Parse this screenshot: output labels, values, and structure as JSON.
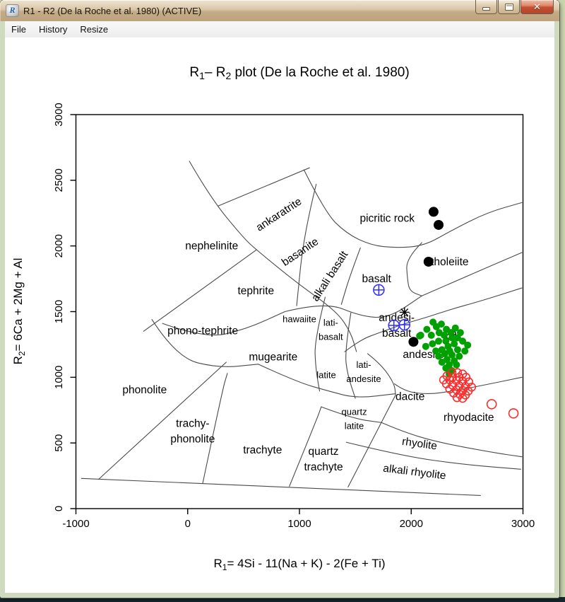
{
  "window": {
    "title": "R1 - R2 (De la Roche et al. 1980) (ACTIVE)",
    "icon_letter": "R",
    "controls": {
      "minimize": "minimize",
      "maximize": "maximize",
      "close": "close"
    }
  },
  "menu": {
    "items": [
      "File",
      "History",
      "Resize"
    ]
  },
  "chart_data": {
    "type": "scatter",
    "title_segments": [
      {
        "t": "R"
      },
      {
        "t": "1",
        "sub": true
      },
      {
        "t": "– R"
      },
      {
        "t": "2",
        "sub": true
      },
      {
        "t": " plot (De la Roche et al. 1980)"
      }
    ],
    "xlabel_segments": [
      {
        "t": "R"
      },
      {
        "t": "1",
        "sub": true
      },
      {
        "t": "= 4Si - 11(Na + K) - 2(Fe + Ti)"
      }
    ],
    "ylabel_segments": [
      {
        "t": "R"
      },
      {
        "t": "2",
        "sub": true
      },
      {
        "t": "= 6Ca + 2Mg + Al"
      }
    ],
    "xlim": [
      -1000,
      3000
    ],
    "ylim": [
      0,
      3000
    ],
    "x_ticks": [
      -1000,
      0,
      1000,
      2000,
      3000
    ],
    "y_ticks": [
      0,
      500,
      1000,
      1500,
      2000,
      2500,
      3000
    ],
    "grid": false,
    "colors": {
      "green_series": "#00A000",
      "red_series": "#FF2A2A",
      "blue_series": "#2E2EFF",
      "black_series": "#000000",
      "boundary": "#4a4a4a"
    },
    "fields": [
      {
        "label": "nephelinite",
        "at": [
          215,
          2000
        ],
        "size": "lg",
        "angle": 0
      },
      {
        "label": "ankaratrite",
        "at": [
          815,
          2240
        ],
        "size": "lg",
        "angle": -33
      },
      {
        "label": "basanite",
        "at": [
          1005,
          1955
        ],
        "size": "lg",
        "angle": -34
      },
      {
        "label": "alkali basalt",
        "at": [
          1270,
          1770
        ],
        "size": "lg",
        "angle": -57
      },
      {
        "label": "picritic rock",
        "at": [
          1785,
          2210
        ],
        "size": "lg",
        "angle": 0
      },
      {
        "label": "basalt",
        "at": [
          1690,
          1750
        ],
        "size": "lg",
        "angle": 0
      },
      {
        "label": "tholeiite",
        "at": [
          2345,
          1880
        ],
        "size": "lg",
        "angle": 0
      },
      {
        "label": "tephrite",
        "at": [
          610,
          1660
        ],
        "size": "lg",
        "angle": 0
      },
      {
        "label": "phono-tephrite",
        "at": [
          135,
          1355
        ],
        "size": "lg",
        "angle": 0
      },
      {
        "label": "hawaiite",
        "at": [
          1000,
          1445
        ],
        "size": "sm",
        "angle": 0
      },
      {
        "label": "lati-\nbasalt",
        "at": [
          1280,
          1420
        ],
        "size": "sm",
        "angle": 0
      },
      {
        "label": "mugearite",
        "at": [
          765,
          1155
        ],
        "size": "lg",
        "angle": 0
      },
      {
        "label": "phonolite",
        "at": [
          -385,
          905
        ],
        "size": "lg",
        "angle": 0
      },
      {
        "label": "latite",
        "at": [
          1240,
          1020
        ],
        "size": "sm",
        "angle": 0
      },
      {
        "label": "lati-\nandesite",
        "at": [
          1575,
          1100
        ],
        "size": "sm",
        "angle": 0
      },
      {
        "label": "andesi-\nbasalt",
        "at": [
          1870,
          1455
        ],
        "size": "lg",
        "angle": 0
      },
      {
        "label": "andesite",
        "at": [
          2110,
          1175
        ],
        "size": "lg",
        "angle": 0
      },
      {
        "label": "dacite",
        "at": [
          1990,
          855
        ],
        "size": "lg",
        "angle": 0
      },
      {
        "label": "quartz\nlatite",
        "at": [
          1490,
          740
        ],
        "size": "sm",
        "angle": 0
      },
      {
        "label": "rhyodacite",
        "at": [
          2515,
          695
        ],
        "size": "lg",
        "angle": 0
      },
      {
        "label": "rhyolite",
        "at": [
          2075,
          495
        ],
        "size": "lg",
        "angle": 8
      },
      {
        "label": "alkali rhyolite",
        "at": [
          2030,
          280
        ],
        "size": "lg",
        "angle": 7
      },
      {
        "label": "trachy-\nphonolite",
        "at": [
          45,
          650
        ],
        "size": "lg",
        "angle": 0
      },
      {
        "label": "trachyte",
        "at": [
          670,
          447
        ],
        "size": "lg",
        "angle": 0
      },
      {
        "label": "quartz\ntrachyte",
        "at": [
          1215,
          435
        ],
        "size": "lg",
        "angle": 0
      }
    ],
    "boundaries": [
      [
        [
          -950,
          230
        ],
        [
          2620,
          100
        ]
      ],
      [
        [
          -320,
          1440
        ],
        [
          -100,
          1150
        ],
        [
          280,
          1070
        ],
        [
          630,
          1100
        ]
      ],
      [
        [
          -795,
          225
        ],
        [
          345,
          1115
        ]
      ],
      [
        [
          135,
          195
        ],
        [
          310,
          900
        ],
        [
          355,
          1030
        ]
      ],
      [
        [
          910,
          170
        ],
        [
          1155,
          680
        ],
        [
          1195,
          775
        ]
      ],
      [
        [
          1435,
          165
        ],
        [
          1860,
          865
        ]
      ],
      [
        [
          -395,
          1350
        ],
        [
          615,
          1970
        ]
      ],
      [
        [
          15,
          2645
        ],
        [
          205,
          2365
        ],
        [
          500,
          2060
        ],
        [
          615,
          1970
        ],
        [
          975,
          1720
        ],
        [
          1335,
          1500
        ],
        [
          1460,
          1340
        ],
        [
          1510,
          1195
        ]
      ],
      [
        [
          275,
          2305
        ],
        [
          1090,
          2595
        ]
      ],
      [
        [
          1040,
          2580
        ],
        [
          1230,
          2255
        ],
        [
          1420,
          2095
        ],
        [
          1640,
          2005
        ],
        [
          1860,
          1985
        ],
        [
          2115,
          2000
        ],
        [
          2365,
          2120
        ],
        [
          2680,
          2255
        ],
        [
          2990,
          2330
        ]
      ],
      [
        [
          2095,
          2025
        ],
        [
          1955,
          1905
        ],
        [
          1965,
          1755
        ],
        [
          1985,
          1655
        ],
        [
          2095,
          1620
        ]
      ],
      [
        [
          2095,
          1620
        ],
        [
          2430,
          1745
        ],
        [
          2990,
          1950
        ]
      ],
      [
        [
          1150,
          2470
        ],
        [
          1040,
          2095
        ],
        [
          975,
          1545
        ]
      ],
      [
        [
          1545,
          1985
        ],
        [
          1450,
          1770
        ],
        [
          1375,
          1555
        ]
      ],
      [
        [
          870,
          1500
        ],
        [
          1230,
          1575
        ],
        [
          1545,
          1465
        ],
        [
          1800,
          1450
        ],
        [
          2095,
          1620
        ]
      ],
      [
        [
          1460,
          1490
        ],
        [
          1405,
          1195
        ],
        [
          1430,
          1020
        ],
        [
          1500,
          840
        ]
      ],
      [
        [
          1230,
          1610
        ],
        [
          1135,
          1285
        ],
        [
          1145,
          1070
        ],
        [
          1180,
          895
        ]
      ],
      [
        [
          -225,
          1410
        ],
        [
          155,
          1295
        ],
        [
          520,
          1365
        ],
        [
          870,
          1500
        ]
      ],
      [
        [
          630,
          1100
        ],
        [
          975,
          965
        ],
        [
          1260,
          895
        ],
        [
          1510,
          840
        ],
        [
          1860,
          875
        ]
      ],
      [
        [
          1610,
          1180
        ],
        [
          1735,
          1095
        ],
        [
          1850,
          950
        ],
        [
          1860,
          865
        ]
      ],
      [
        [
          1850,
          950
        ],
        [
          1945,
          890
        ],
        [
          2160,
          870
        ],
        [
          2365,
          895
        ],
        [
          2620,
          935
        ],
        [
          2990,
          1000
        ]
      ],
      [
        [
          1405,
          1195
        ],
        [
          1545,
          1285
        ],
        [
          1715,
          1340
        ],
        [
          1945,
          1410
        ],
        [
          2115,
          1450
        ],
        [
          2365,
          1520
        ],
        [
          2620,
          1580
        ],
        [
          2990,
          1680
        ]
      ],
      [
        [
          1735,
          655
        ],
        [
          1925,
          585
        ],
        [
          2240,
          505
        ],
        [
          2745,
          425
        ],
        [
          2990,
          395
        ]
      ],
      [
        [
          1420,
          505
        ],
        [
          1925,
          400
        ],
        [
          2475,
          335
        ],
        [
          2980,
          300
        ]
      ],
      [
        [
          1195,
          775
        ],
        [
          1480,
          685
        ],
        [
          1735,
          655
        ]
      ]
    ],
    "series": [
      {
        "name": "black filled circles",
        "marker": "filled-circle",
        "color": "#000000",
        "r": 7,
        "points": [
          [
            2200,
            2260
          ],
          [
            2245,
            2160
          ],
          [
            2155,
            1880
          ],
          [
            2020,
            1270
          ]
        ]
      },
      {
        "name": "black asterisk",
        "marker": "asterisk",
        "color": "#000000",
        "r": 7,
        "points": [
          [
            1940,
            1495
          ]
        ]
      },
      {
        "name": "black circle-plus",
        "marker": "circle-plus",
        "color": "#1a1a1a",
        "r": 7,
        "points": [
          [
            2355,
            1325
          ]
        ]
      },
      {
        "name": "blue circle-plus",
        "marker": "circle-plus",
        "color": "#2E2EFF",
        "r": 7.5,
        "points": [
          [
            1710,
            1665
          ],
          [
            1845,
            1395
          ],
          [
            1940,
            1400
          ]
        ]
      },
      {
        "name": "green filled circles",
        "marker": "filled-circle",
        "color": "#00A000",
        "r": 5,
        "points": [
          [
            2195,
            1420
          ],
          [
            2140,
            1365
          ],
          [
            2085,
            1320
          ],
          [
            2225,
            1385
          ],
          [
            2270,
            1405
          ],
          [
            2315,
            1365
          ],
          [
            2250,
            1340
          ],
          [
            2180,
            1320
          ],
          [
            2295,
            1320
          ],
          [
            2355,
            1340
          ],
          [
            2395,
            1375
          ],
          [
            2440,
            1340
          ],
          [
            2365,
            1300
          ],
          [
            2310,
            1275
          ],
          [
            2245,
            1275
          ],
          [
            2190,
            1255
          ],
          [
            2130,
            1235
          ],
          [
            2415,
            1300
          ],
          [
            2460,
            1275
          ],
          [
            2505,
            1245
          ],
          [
            2385,
            1255
          ],
          [
            2330,
            1235
          ],
          [
            2275,
            1210
          ],
          [
            2220,
            1200
          ],
          [
            2345,
            1200
          ],
          [
            2415,
            1210
          ],
          [
            2480,
            1200
          ],
          [
            2300,
            1180
          ],
          [
            2245,
            1160
          ],
          [
            2365,
            1170
          ],
          [
            2430,
            1160
          ],
          [
            2320,
            1135
          ],
          [
            2385,
            1125
          ],
          [
            2275,
            1115
          ],
          [
            2340,
            1095
          ],
          [
            2405,
            1095
          ],
          [
            2310,
            1070
          ],
          [
            2365,
            1050
          ],
          [
            2340,
            1025
          ],
          [
            2075,
            1315
          ]
        ]
      },
      {
        "name": "red open circles",
        "marker": "open-circle",
        "color": "#FF2A2A",
        "r": 5.5,
        "points": [
          [
            2365,
            1035
          ],
          [
            2415,
            1035
          ],
          [
            2460,
            1025
          ],
          [
            2320,
            1010
          ],
          [
            2370,
            1000
          ],
          [
            2430,
            1000
          ],
          [
            2490,
            1000
          ],
          [
            2290,
            980
          ],
          [
            2345,
            980
          ],
          [
            2405,
            975
          ],
          [
            2460,
            970
          ],
          [
            2515,
            965
          ],
          [
            2315,
            950
          ],
          [
            2370,
            940
          ],
          [
            2430,
            935
          ],
          [
            2485,
            930
          ],
          [
            2540,
            925
          ],
          [
            2345,
            910
          ],
          [
            2405,
            905
          ],
          [
            2460,
            900
          ],
          [
            2510,
            895
          ],
          [
            2380,
            880
          ],
          [
            2435,
            870
          ],
          [
            2485,
            865
          ],
          [
            2410,
            845
          ],
          [
            2460,
            840
          ]
        ]
      },
      {
        "name": "red open circles outliers",
        "marker": "open-circle",
        "color": "#FF2A2A",
        "r": 6.5,
        "points": [
          [
            2720,
            795
          ],
          [
            2915,
            725
          ]
        ]
      }
    ]
  }
}
